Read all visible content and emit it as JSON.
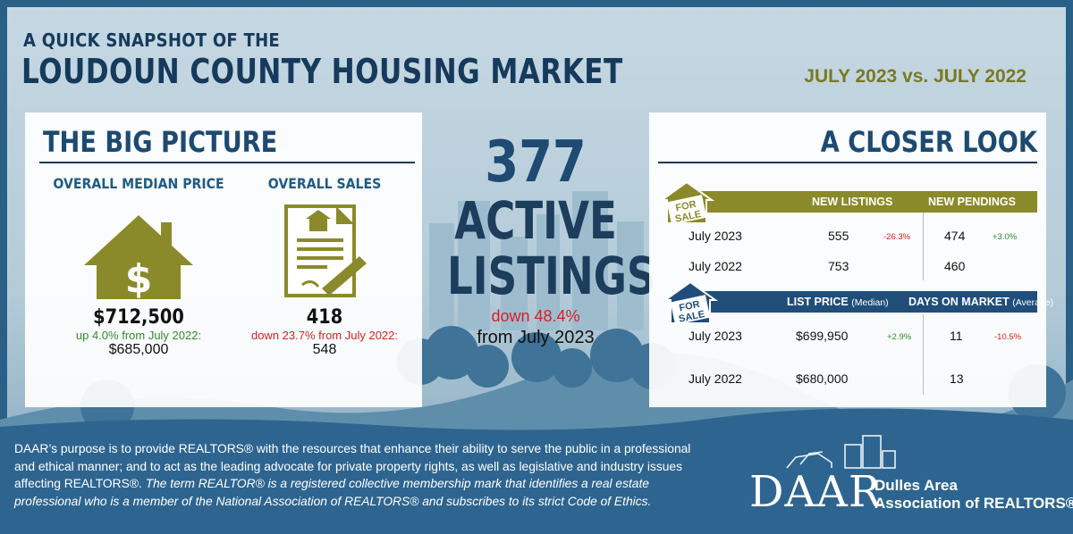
{
  "header": {
    "kicker": "A QUICK SNAPSHOT OF THE",
    "title": "LOUDOUN COUNTY HOUSING MARKET",
    "period": "JULY 2023 vs. JULY 2022"
  },
  "big_picture": {
    "title": "THE BIG PICTURE",
    "median_price": {
      "label": "OVERALL MEDIAN PRICE",
      "icon": "house-dollar-icon",
      "value": "$712,500",
      "change": "up 4.0% from July 2022:",
      "prior": "$685,000"
    },
    "sales": {
      "label": "OVERALL SALES",
      "icon": "contract-signature-icon",
      "value": "418",
      "change": "down 23.7% from July 2022:",
      "prior": "548"
    }
  },
  "active": {
    "number": "377",
    "word1": "ACTIVE",
    "word2": "LISTINGS",
    "change": "down 48.4%",
    "from": "from July 2023"
  },
  "closer_look": {
    "title": "A CLOSER LOOK",
    "tag_text": "FOR SALE",
    "table1": {
      "headers": [
        "NEW LISTINGS",
        "NEW PENDINGS"
      ],
      "rows": [
        {
          "label": "July 2023",
          "listings": "555",
          "listings_delta": "-26.3%",
          "pendings": "474",
          "pendings_delta": "+3.0%"
        },
        {
          "label": "July 2022",
          "listings": "753",
          "pendings": "460"
        }
      ]
    },
    "table2": {
      "headers": [
        "LIST PRICE",
        "(Median)",
        "DAYS ON MARKET",
        "(Average)"
      ],
      "rows": [
        {
          "label": "July 2023",
          "price": "$699,950",
          "price_delta": "+2.9%",
          "days": "11",
          "days_delta": "-10.5%"
        },
        {
          "label": "July 2022",
          "price": "$680,000",
          "days": "13"
        }
      ]
    }
  },
  "footer": {
    "p1": "DAAR’s purpose is to provide REALTORS® with the resources that enhance their ability to serve the public in a professional and ethical manner; and to act as the leading advocate for private property rights, as well as legislative and industry issues affecting REALTORS®.",
    "p2": "The term REALTOR® is a registered collective membership mark that identifies a real estate professional who is a member of the National Association of REALTORS® and subscribes to its strict Code of Ethics."
  },
  "logo": {
    "word": "DAAR",
    "line1": "Dulles Area",
    "line2": "Association of REALTORS®"
  },
  "colors": {
    "navy": "#153a5c",
    "olive": "#8a8a2a",
    "bar_blue": "#1f4e7a",
    "red": "#d62020",
    "green": "#2e8b2e"
  }
}
